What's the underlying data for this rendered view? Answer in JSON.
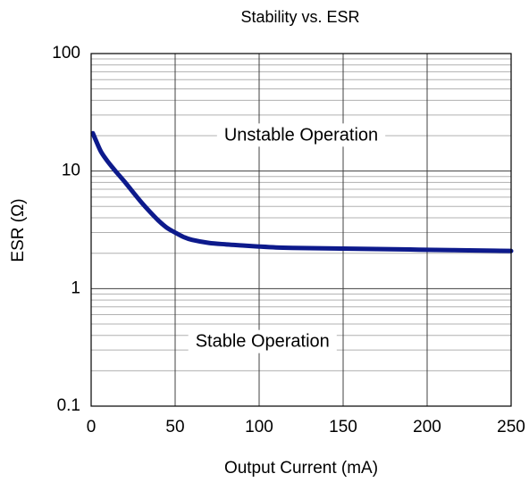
{
  "chart_data": {
    "type": "line",
    "title": "Stability vs. ESR",
    "xlabel": "Output Current (mA)",
    "ylabel": "ESR (Ω)",
    "xlim": [
      0,
      250
    ],
    "ylim": [
      0.1,
      100
    ],
    "yscale": "log",
    "grid": true,
    "x_ticks": [
      0,
      50,
      100,
      150,
      200,
      250
    ],
    "y_ticks": [
      0.1,
      1,
      10,
      100
    ],
    "y_tick_labels": [
      "0.1",
      "1",
      "10",
      "100"
    ],
    "annotations": [
      {
        "text": "Unstable Operation",
        "x": 125,
        "y": 20
      },
      {
        "text": "Stable Operation",
        "x": 102,
        "y": 0.35
      }
    ],
    "series": [
      {
        "color": "#0d1a8c",
        "x": [
          1,
          3,
          6,
          10,
          15,
          20,
          25,
          30,
          35,
          40,
          45,
          50,
          55,
          60,
          70,
          80,
          90,
          100,
          110,
          120,
          130,
          140,
          150,
          160,
          170,
          180,
          190,
          200,
          210,
          220,
          230,
          240,
          250
        ],
        "y": [
          21,
          18,
          14.5,
          12,
          9.8,
          8.1,
          6.6,
          5.4,
          4.5,
          3.8,
          3.3,
          3.0,
          2.75,
          2.6,
          2.45,
          2.38,
          2.33,
          2.28,
          2.24,
          2.22,
          2.21,
          2.2,
          2.19,
          2.18,
          2.17,
          2.16,
          2.15,
          2.14,
          2.13,
          2.12,
          2.11,
          2.1,
          2.09
        ]
      }
    ]
  }
}
